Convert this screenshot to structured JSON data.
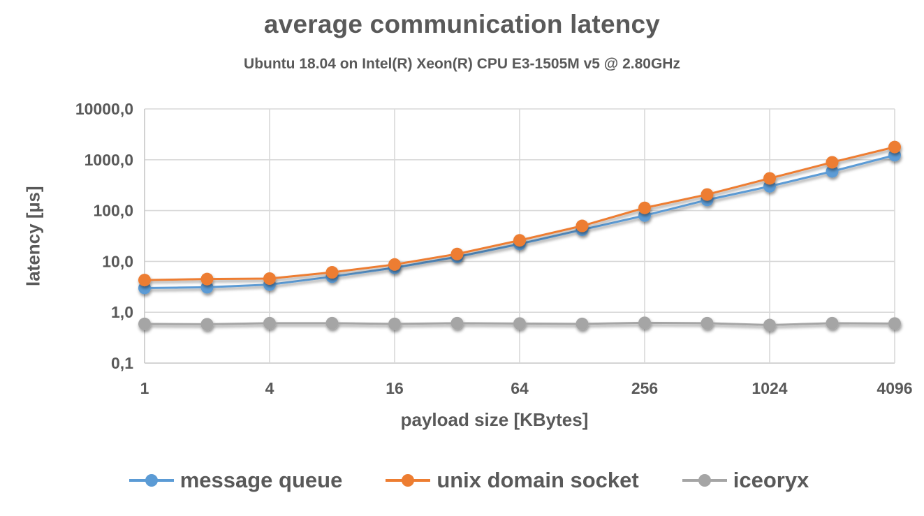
{
  "title": "average communication latency",
  "subtitle": "Ubuntu 18.04 on Intel(R) Xeon(R) CPU E3-1505M v5 @ 2.80GHz",
  "colors": {
    "text": "#595959",
    "gridline": "#D9D9D9",
    "axis_line": "#C6C6C6",
    "background": "#FFFFFF",
    "series_blue": "#5B9BD5",
    "series_orange": "#ED7D31",
    "series_gray": "#A5A5A5"
  },
  "chart_data": {
    "type": "line",
    "title": "average communication latency",
    "subtitle": "Ubuntu 18.04 on Intel(R) Xeon(R) CPU E3-1505M v5 @ 2.80GHz",
    "xlabel": "payload size [KBytes]",
    "ylabel": "latency [µs]",
    "x_scale": "log2",
    "y_scale": "log10",
    "xlim": [
      1,
      4096
    ],
    "ylim": [
      0.1,
      10000
    ],
    "grid": true,
    "legend_position": "bottom",
    "x": [
      1,
      2,
      4,
      8,
      16,
      32,
      64,
      128,
      256,
      512,
      1024,
      2048,
      4096
    ],
    "series": [
      {
        "name": "message queue",
        "color": "#5B9BD5",
        "values": [
          3.0,
          3.1,
          3.5,
          5.0,
          7.5,
          12.3,
          22,
          42,
          80,
          162,
          300,
          590,
          1230
        ]
      },
      {
        "name": "unix domain socket",
        "color": "#ED7D31",
        "values": [
          4.3,
          4.5,
          4.6,
          6.1,
          8.7,
          14.0,
          26,
          50,
          113,
          207,
          430,
          890,
          1780
        ]
      },
      {
        "name": "iceoryx",
        "color": "#A5A5A5",
        "values": [
          0.59,
          0.58,
          0.61,
          0.61,
          0.59,
          0.61,
          0.6,
          0.59,
          0.62,
          0.61,
          0.56,
          0.61,
          0.6
        ]
      }
    ],
    "x_ticks": {
      "values": [
        1,
        4,
        16,
        64,
        256,
        1024,
        4096
      ],
      "labels": [
        "1",
        "4",
        "16",
        "64",
        "256",
        "1024",
        "4096"
      ]
    },
    "y_ticks": {
      "values": [
        10000,
        1000,
        100,
        10,
        1,
        0.1
      ],
      "labels": [
        "10000,0",
        "1000,0",
        "100,0",
        "10,0",
        "1,0",
        "0,1"
      ]
    }
  }
}
